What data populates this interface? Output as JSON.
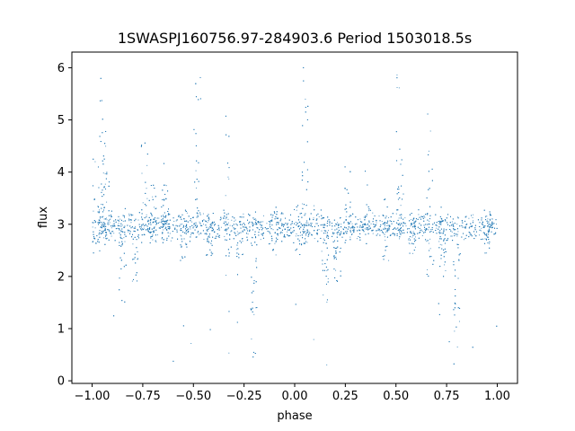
{
  "chart_data": {
    "type": "scatter",
    "title": "1SWASPJ160756.97-284903.6 Period 1503018.5s",
    "xlabel": "phase",
    "ylabel": "flux",
    "xlim": [
      -1.1,
      1.1
    ],
    "ylim": [
      -0.05,
      6.3
    ],
    "xticks": [
      -1.0,
      -0.75,
      -0.5,
      -0.25,
      0.0,
      0.25,
      0.5,
      0.75,
      1.0
    ],
    "xtick_labels": [
      "−1.00",
      "−0.75",
      "−0.50",
      "−0.25",
      "0.00",
      "0.25",
      "0.50",
      "0.75",
      "1.00"
    ],
    "yticks": [
      0,
      1,
      2,
      3,
      4,
      5,
      6
    ],
    "ytick_labels": [
      "0",
      "1",
      "2",
      "3",
      "4",
      "5",
      "6"
    ],
    "grid": false,
    "point_color": "#1f77b4",
    "folded_period": 1.0,
    "phase_features": [
      {
        "phase": -0.98,
        "low": 2.4,
        "high": 4.3
      },
      {
        "phase": -0.95,
        "low": 2.6,
        "high": 6.0
      },
      {
        "phase": -0.93,
        "low": 2.7,
        "high": 4.6
      },
      {
        "phase": -0.85,
        "low": 1.5,
        "high": 3.3
      },
      {
        "phase": -0.79,
        "low": 1.9,
        "high": 3.1
      },
      {
        "phase": -0.74,
        "low": 2.7,
        "high": 4.8
      },
      {
        "phase": -0.7,
        "low": 2.6,
        "high": 3.9
      },
      {
        "phase": -0.64,
        "low": 2.9,
        "high": 4.3
      },
      {
        "phase": -0.55,
        "low": 2.3,
        "high": 3.5
      },
      {
        "phase": -0.48,
        "low": 2.8,
        "high": 5.9
      },
      {
        "phase": -0.42,
        "low": 2.4,
        "high": 3.2
      },
      {
        "phase": -0.33,
        "low": 2.0,
        "high": 5.2
      },
      {
        "phase": -0.27,
        "low": 2.0,
        "high": 3.2
      },
      {
        "phase": -0.2,
        "low": 0.3,
        "high": 3.1
      },
      {
        "phase": -0.1,
        "low": 2.4,
        "high": 3.3
      },
      {
        "phase": 0.02,
        "low": 2.4,
        "high": 3.4
      },
      {
        "phase": 0.05,
        "low": 2.6,
        "high": 6.0
      },
      {
        "phase": 0.15,
        "low": 1.5,
        "high": 3.3
      },
      {
        "phase": 0.21,
        "low": 1.9,
        "high": 3.1
      },
      {
        "phase": 0.26,
        "low": 2.7,
        "high": 5.0
      },
      {
        "phase": 0.36,
        "low": 2.9,
        "high": 4.3
      },
      {
        "phase": 0.45,
        "low": 2.3,
        "high": 3.5
      },
      {
        "phase": 0.52,
        "low": 2.8,
        "high": 5.9
      },
      {
        "phase": 0.58,
        "low": 2.4,
        "high": 3.2
      },
      {
        "phase": 0.67,
        "low": 2.0,
        "high": 5.2
      },
      {
        "phase": 0.73,
        "low": 2.0,
        "high": 3.2
      },
      {
        "phase": 0.8,
        "low": 0.3,
        "high": 3.1
      },
      {
        "phase": 0.95,
        "low": 2.4,
        "high": 3.3
      }
    ],
    "baseline_flux": 2.95,
    "n_points_per_cycle": 2600
  }
}
